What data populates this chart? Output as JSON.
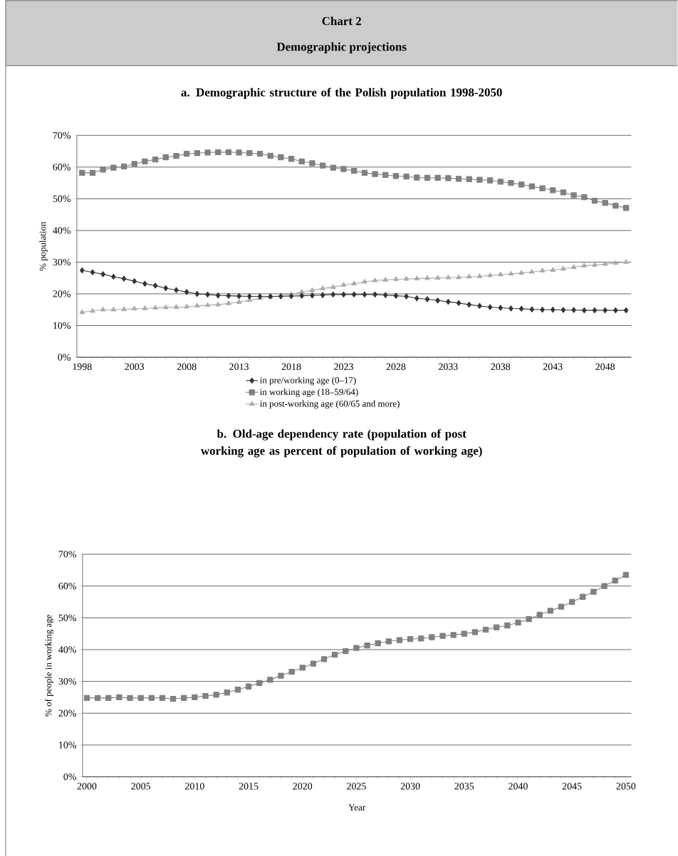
{
  "chart_data": [
    {
      "type": "line",
      "annotations": [
        "Chart 2",
        "Demographic projections"
      ],
      "title": "a. Demographic structure of the Polish population 1998-2050",
      "ylabel": "% population",
      "x": [
        1998,
        1999,
        2000,
        2001,
        2002,
        2003,
        2004,
        2005,
        2006,
        2007,
        2008,
        2009,
        2010,
        2011,
        2012,
        2013,
        2014,
        2015,
        2016,
        2017,
        2018,
        2019,
        2020,
        2021,
        2022,
        2023,
        2024,
        2025,
        2026,
        2027,
        2028,
        2029,
        2030,
        2031,
        2032,
        2033,
        2034,
        2035,
        2036,
        2037,
        2038,
        2039,
        2040,
        2041,
        2042,
        2043,
        2044,
        2045,
        2046,
        2047,
        2048,
        2049,
        2050
      ],
      "series": [
        {
          "name": "in pre/working age (0–17)",
          "color": "#333333",
          "marker": "diamond",
          "values": [
            27.4,
            26.8,
            26.2,
            25.4,
            24.8,
            24.0,
            23.2,
            22.6,
            21.8,
            21.2,
            20.6,
            20.0,
            19.8,
            19.5,
            19.4,
            19.3,
            19.2,
            19.2,
            19.2,
            19.2,
            19.3,
            19.4,
            19.5,
            19.6,
            19.8,
            19.8,
            19.8,
            19.8,
            19.8,
            19.6,
            19.4,
            19.2,
            18.6,
            18.3,
            17.9,
            17.5,
            17.1,
            16.6,
            16.2,
            15.8,
            15.6,
            15.4,
            15.3,
            15.1,
            15.0,
            15.0,
            14.9,
            14.9,
            14.8,
            14.8,
            14.8,
            14.8,
            14.8
          ]
        },
        {
          "name": "in working age (18–59/64)",
          "color": "#808080",
          "marker": "square",
          "values": [
            58.2,
            58.2,
            59.2,
            59.8,
            60.2,
            61.0,
            61.8,
            62.4,
            63.1,
            63.5,
            64.2,
            64.4,
            64.6,
            64.7,
            64.7,
            64.6,
            64.4,
            64.2,
            63.6,
            63.1,
            62.6,
            61.8,
            61.2,
            60.5,
            59.8,
            59.4,
            58.8,
            58.2,
            57.8,
            57.5,
            57.2,
            57.0,
            56.7,
            56.6,
            56.6,
            56.5,
            56.3,
            56.2,
            56.0,
            55.8,
            55.4,
            55.0,
            54.5,
            53.9,
            53.3,
            52.7,
            52.0,
            51.1,
            50.5,
            49.4,
            48.7,
            47.8,
            47.1
          ]
        },
        {
          "name": "in post-working age (60/65 and more)",
          "color": "#aaaaaa",
          "marker": "triangle",
          "values": [
            14.2,
            14.6,
            15.0,
            15.0,
            15.1,
            15.3,
            15.4,
            15.6,
            15.7,
            15.8,
            15.9,
            16.2,
            16.4,
            16.6,
            17.0,
            17.4,
            18.0,
            18.6,
            19.0,
            19.5,
            19.8,
            20.6,
            21.1,
            21.7,
            22.1,
            22.8,
            23.2,
            23.8,
            24.2,
            24.4,
            24.6,
            24.7,
            24.8,
            24.9,
            25.0,
            25.1,
            25.2,
            25.4,
            25.5,
            25.8,
            26.1,
            26.3,
            26.6,
            26.9,
            27.3,
            27.5,
            27.9,
            28.4,
            28.9,
            29.1,
            29.4,
            29.7,
            30.0
          ]
        }
      ],
      "xlim": [
        1997.5,
        2050.5
      ],
      "xticks": [
        1998,
        2003,
        2008,
        2013,
        2018,
        2023,
        2028,
        2033,
        2038,
        2043,
        2048
      ],
      "ylim": [
        0,
        70
      ],
      "yticks": [
        {
          "value": 0,
          "label": "0%"
        },
        {
          "value": 10,
          "label": "10%"
        },
        {
          "value": 20,
          "label": "20%"
        },
        {
          "value": 30,
          "label": "30%"
        },
        {
          "value": 40,
          "label": "40%"
        },
        {
          "value": 50,
          "label": "50%"
        },
        {
          "value": 60,
          "label": "60%"
        },
        {
          "value": 70,
          "label": "70%"
        }
      ],
      "grid": "y",
      "legend": "bottom"
    },
    {
      "type": "line",
      "title": "b. Old-age dependency rate (population of post working age as percent of population of working age)",
      "xlabel": "Year",
      "ylabel": "% of people in working age",
      "x": [
        2000,
        2001,
        2002,
        2003,
        2004,
        2005,
        2006,
        2007,
        2008,
        2009,
        2010,
        2011,
        2012,
        2013,
        2014,
        2015,
        2016,
        2017,
        2018,
        2019,
        2020,
        2021,
        2022,
        2023,
        2024,
        2025,
        2026,
        2027,
        2028,
        2029,
        2030,
        2031,
        2032,
        2033,
        2034,
        2035,
        2036,
        2037,
        2038,
        2039,
        2040,
        2041,
        2042,
        2043,
        2044,
        2045,
        2046,
        2047,
        2048,
        2049,
        2050
      ],
      "series": [
        {
          "color": "#808080",
          "marker": "square",
          "values": [
            24.8,
            24.8,
            24.8,
            25.0,
            24.8,
            24.8,
            24.8,
            24.8,
            24.5,
            24.8,
            25.0,
            25.4,
            25.8,
            26.5,
            27.4,
            28.4,
            29.5,
            30.5,
            31.8,
            33.0,
            34.3,
            35.6,
            37.0,
            38.4,
            39.5,
            40.5,
            41.3,
            42.0,
            42.6,
            43.0,
            43.3,
            43.5,
            43.9,
            44.3,
            44.6,
            45.0,
            45.5,
            46.3,
            47.0,
            47.6,
            48.5,
            49.6,
            51.0,
            52.2,
            53.5,
            55.0,
            56.6,
            58.2,
            60.0,
            61.7,
            63.5
          ]
        }
      ],
      "xlim": [
        1999.6,
        2050.5
      ],
      "xticks": [
        2000,
        2005,
        2010,
        2015,
        2020,
        2025,
        2030,
        2035,
        2040,
        2045,
        2050
      ],
      "ylim": [
        0,
        70
      ],
      "yticks": [
        {
          "value": 0,
          "label": "0%"
        },
        {
          "value": 10,
          "label": "10%"
        },
        {
          "value": 20,
          "label": "20%"
        },
        {
          "value": 30,
          "label": "30%"
        },
        {
          "value": 40,
          "label": "40%"
        },
        {
          "value": 50,
          "label": "50%"
        },
        {
          "value": 60,
          "label": "60%"
        },
        {
          "value": 70,
          "label": "70%"
        }
      ],
      "grid": "y"
    }
  ]
}
